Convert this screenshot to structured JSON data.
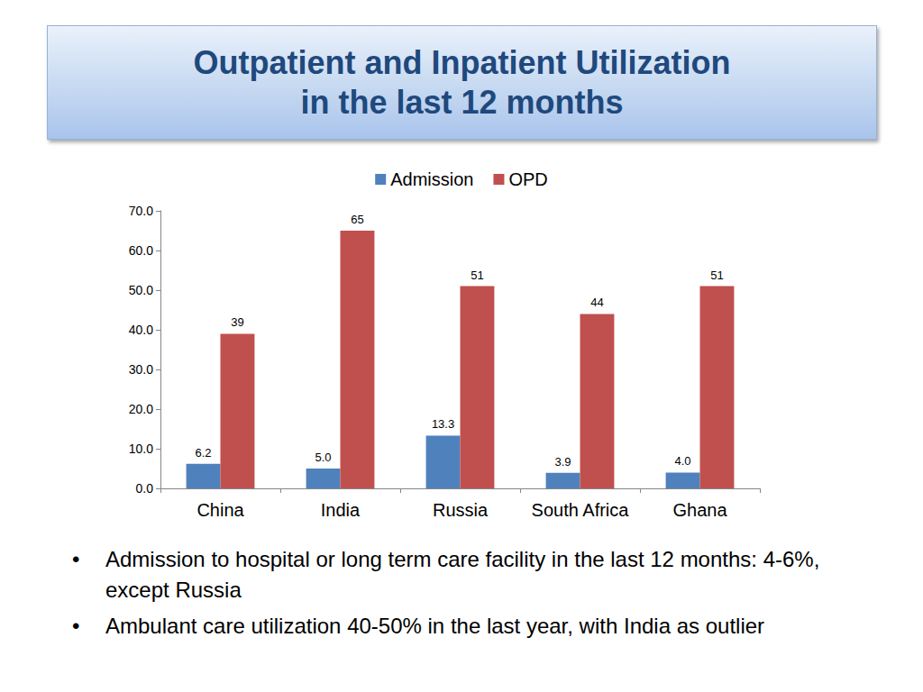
{
  "chart_data": {
    "type": "bar",
    "title": "Outpatient and Inpatient Utilization\nin the last 12 months",
    "categories": [
      "China",
      "India",
      "Russia",
      "South Africa",
      "Ghana"
    ],
    "series": [
      {
        "name": "Admission",
        "color": "#4f81bd",
        "values": [
          6.2,
          5.0,
          13.3,
          3.9,
          4.0
        ],
        "value_labels": [
          "6.2",
          "5.0",
          "13.3",
          "3.9",
          "4.0"
        ]
      },
      {
        "name": "OPD",
        "color": "#c0504d",
        "values": [
          39,
          65,
          51,
          44,
          51
        ]
      }
    ],
    "ylim": [
      0,
      70
    ],
    "yticks": [
      {
        "value": 0,
        "label": "0.0"
      },
      {
        "value": 10,
        "label": "10.0"
      },
      {
        "value": 20,
        "label": "20.0"
      },
      {
        "value": 30,
        "label": "30.0"
      },
      {
        "value": 40,
        "label": "40.0"
      },
      {
        "value": 50,
        "label": "50.0"
      },
      {
        "value": 60,
        "label": "60.0"
      },
      {
        "value": 70,
        "label": "70.0"
      }
    ],
    "grid": false,
    "legend": "top",
    "data_labels": true,
    "annotations": [
      "Admission to hospital or long term care facility in the last 12 months: 4-6%, except Russia",
      "Ambulant care utilization 40-50% in the last year, with India as outlier"
    ]
  }
}
